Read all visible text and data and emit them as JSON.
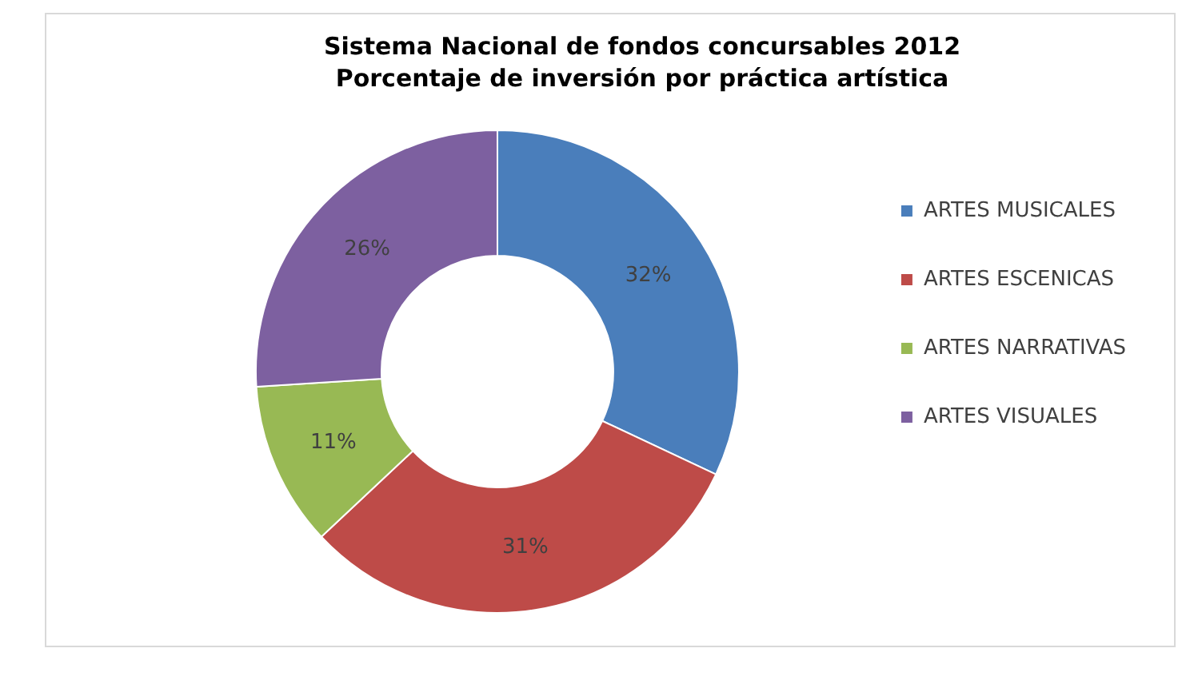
{
  "chart_data": {
    "type": "donut",
    "title": "Sistema Nacional de fondos concursables 2012",
    "subtitle": "Porcentaje de inversión por práctica artística",
    "categories": [
      "ARTES MUSICALES",
      "ARTES ESCENICAS",
      "ARTES NARRATIVAS",
      "ARTES VISUALES"
    ],
    "values": [
      32,
      31,
      11,
      26
    ],
    "colors": [
      "#4a7ebb",
      "#be4b48",
      "#98b954",
      "#7d60a0"
    ],
    "value_labels": [
      "32%",
      "31%",
      "11%",
      "26%"
    ],
    "legend": "right"
  }
}
